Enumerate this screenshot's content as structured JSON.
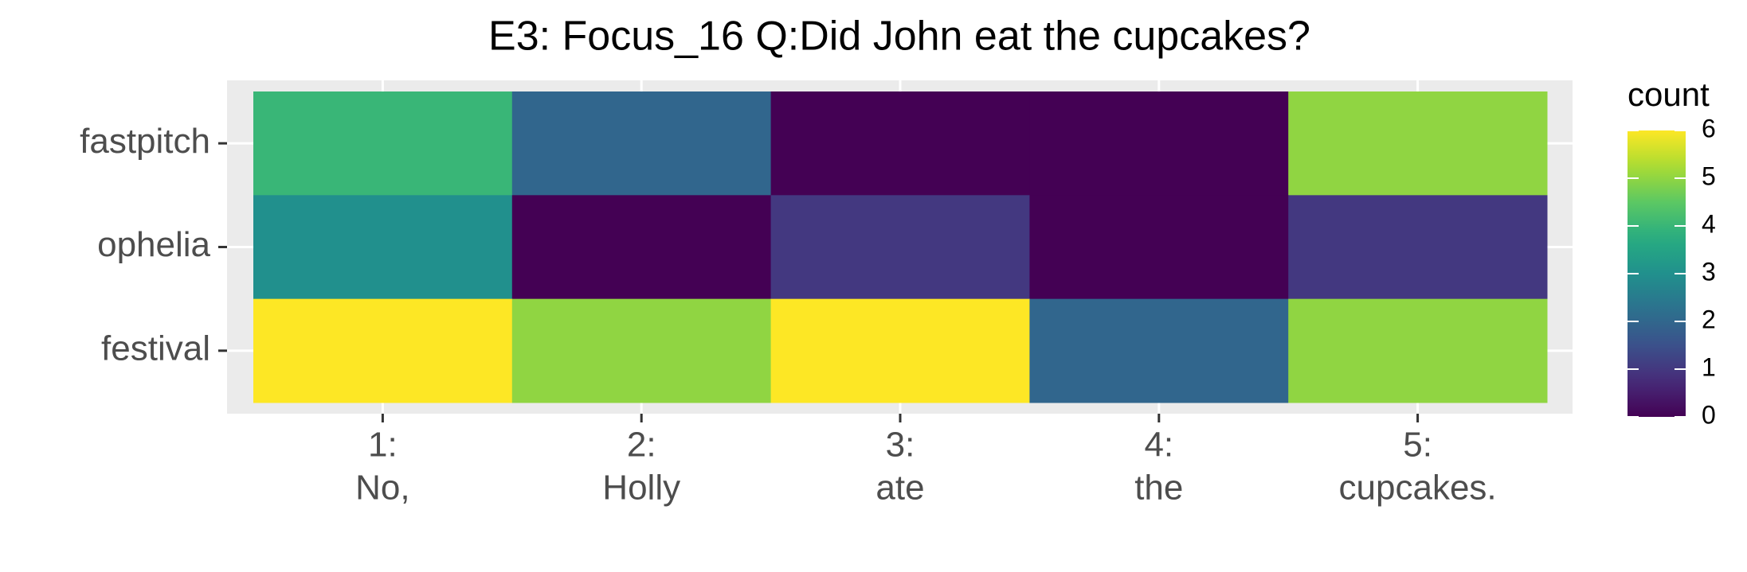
{
  "chart_data": {
    "type": "heatmap",
    "title": "E3: Focus_16 Q:Did John eat the cupcakes?",
    "categories": [
      [
        "1:",
        "No,"
      ],
      [
        "2:",
        "Holly"
      ],
      [
        "3:",
        "ate"
      ],
      [
        "4:",
        "the"
      ],
      [
        "5:",
        "cupcakes."
      ]
    ],
    "rows": [
      "fastpitch",
      "ophelia",
      "festival"
    ],
    "values": [
      [
        4,
        2,
        0,
        0,
        5
      ],
      [
        3,
        0,
        1,
        0,
        1
      ],
      [
        6,
        5,
        6,
        2,
        5
      ]
    ],
    "colormap": "viridis",
    "legend_title": "count",
    "clim": [
      0,
      6
    ],
    "cticks": [
      0,
      1,
      2,
      3,
      4,
      5,
      6
    ],
    "grid": true
  }
}
